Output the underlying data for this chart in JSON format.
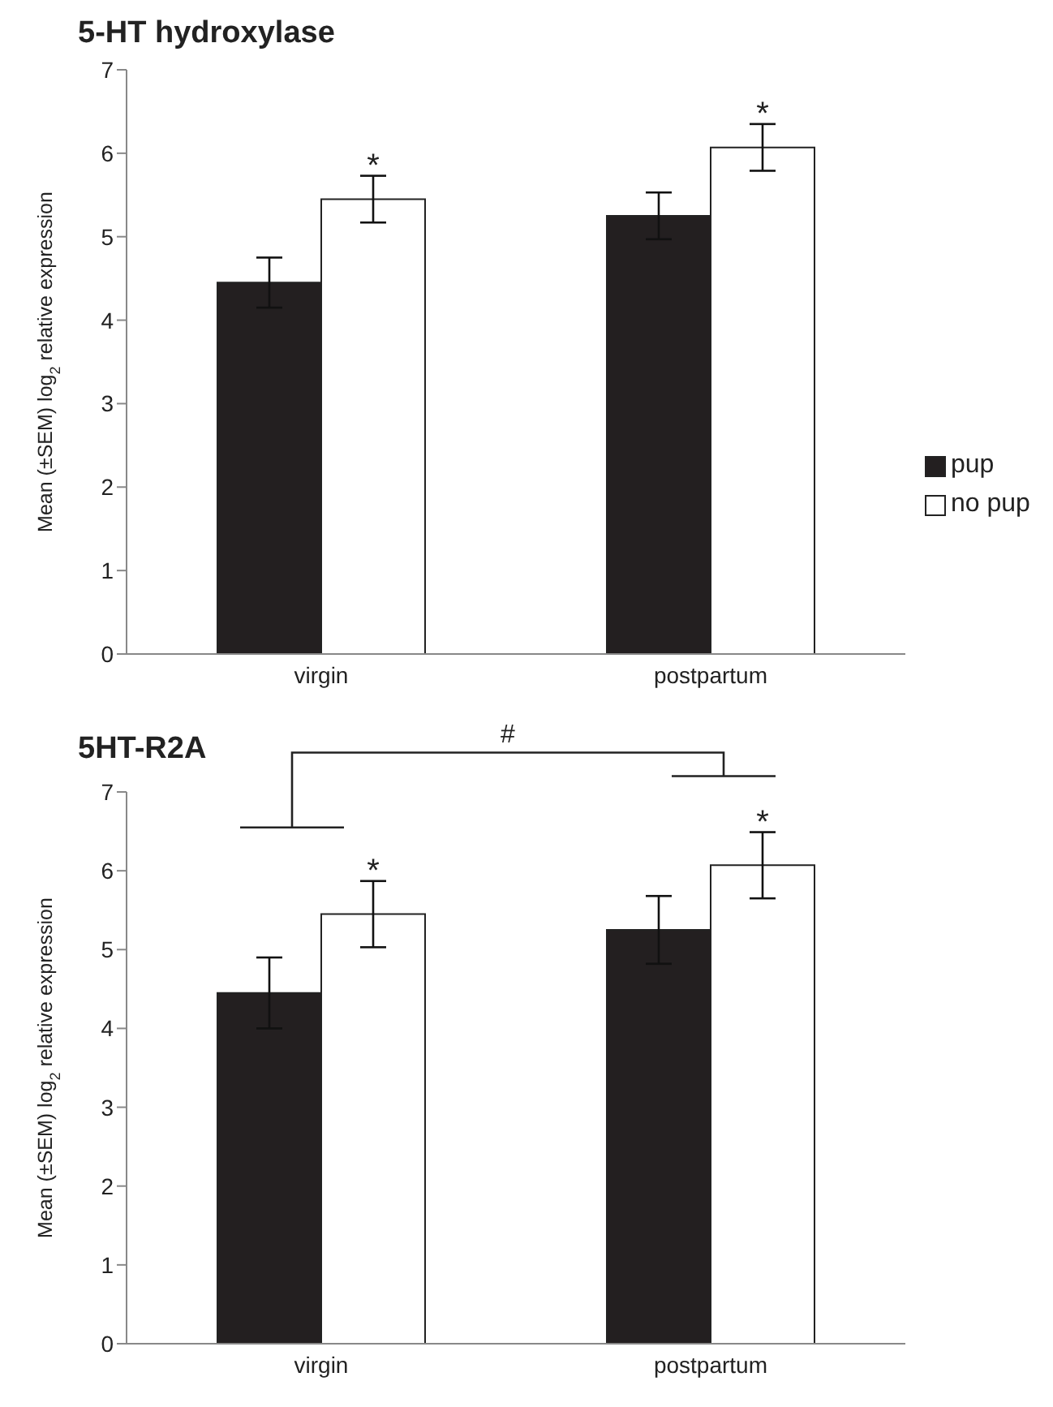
{
  "chart_data": [
    {
      "type": "bar",
      "title": "5-HT hydroxylase",
      "ylabel": "Mean (±SEM) log$_{2}$ relative expression",
      "categories": [
        "virgin",
        "postpartum"
      ],
      "series": [
        {
          "name": "pup",
          "color": "#231f20",
          "values": [
            4.45,
            5.25
          ],
          "errors": [
            0.3,
            0.28
          ]
        },
        {
          "name": "no pup",
          "color": "#ffffff",
          "values": [
            5.45,
            6.07
          ],
          "errors": [
            0.28,
            0.28
          ]
        }
      ],
      "ylim": [
        0,
        7
      ],
      "yticks": [
        0,
        1,
        2,
        3,
        4,
        5,
        6,
        7
      ],
      "grid": false,
      "legend": "right",
      "annotations": [
        "*",
        "*"
      ]
    },
    {
      "type": "bar",
      "title": "5HT-R2A",
      "ylabel": "Mean (±SEM) log$_{2}$ relative expression",
      "categories": [
        "virgin",
        "postpartum"
      ],
      "series": [
        {
          "color": "#231f20",
          "values": [
            4.45,
            5.25
          ],
          "errors": [
            0.45,
            0.43
          ]
        },
        {
          "color": "#ffffff",
          "values": [
            5.45,
            6.07
          ],
          "errors": [
            0.42,
            0.42
          ]
        }
      ],
      "ylim": [
        0,
        7
      ],
      "yticks": [
        0,
        1,
        2,
        3,
        4,
        5,
        6,
        7
      ],
      "grid": false,
      "legend": false,
      "annotations": [
        "*",
        "*",
        "#"
      ]
    }
  ]
}
